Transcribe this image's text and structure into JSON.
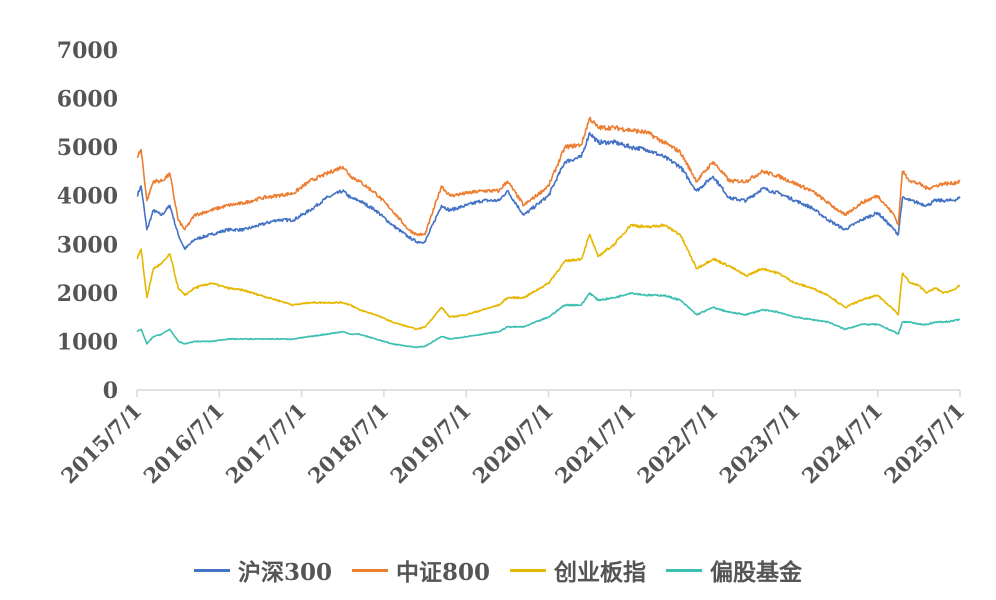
{
  "chart_data": {
    "type": "line",
    "title": "",
    "xlabel": "",
    "ylabel": "",
    "ylim": [
      0,
      7000
    ],
    "yticks": [
      0,
      1000,
      2000,
      3000,
      4000,
      5000,
      6000,
      7000
    ],
    "xlim": [
      2015.5,
      2025.5
    ],
    "xtick_labels": [
      "2015/7/1",
      "2016/7/1",
      "2017/7/1",
      "2018/7/1",
      "2019/7/1",
      "2020/7/1",
      "2021/7/1",
      "2022/7/1",
      "2023/7/1",
      "2024/7/1",
      "2025/7/1"
    ],
    "grid": false,
    "legend": "bottom",
    "series": [
      {
        "name": "沪深300",
        "color": "#4472C4",
        "x": [
          2015.5,
          2015.55,
          2015.62,
          2015.7,
          2015.8,
          2015.9,
          2016.0,
          2016.08,
          2016.2,
          2016.4,
          2016.6,
          2016.8,
          2017.0,
          2017.2,
          2017.4,
          2017.6,
          2017.8,
          2018.0,
          2018.1,
          2018.2,
          2018.4,
          2018.6,
          2018.8,
          2018.9,
          2019.0,
          2019.2,
          2019.3,
          2019.5,
          2019.7,
          2019.9,
          2020.0,
          2020.2,
          2020.5,
          2020.7,
          2020.9,
          2021.0,
          2021.1,
          2021.3,
          2021.5,
          2021.7,
          2021.9,
          2022.1,
          2022.3,
          2022.5,
          2022.7,
          2022.9,
          2023.1,
          2023.3,
          2023.5,
          2023.7,
          2023.9,
          2024.1,
          2024.3,
          2024.5,
          2024.7,
          2024.75,
          2024.8,
          2024.9,
          2025.0,
          2025.1,
          2025.2,
          2025.3,
          2025.4,
          2025.5
        ],
        "values": [
          4000,
          4200,
          3300,
          3700,
          3600,
          3800,
          3200,
          2900,
          3100,
          3200,
          3300,
          3300,
          3400,
          3500,
          3500,
          3700,
          3950,
          4100,
          3950,
          3900,
          3700,
          3400,
          3150,
          3050,
          3050,
          3800,
          3700,
          3800,
          3900,
          3900,
          4100,
          3600,
          4000,
          4700,
          4800,
          5300,
          5100,
          5100,
          5000,
          4950,
          4800,
          4600,
          4100,
          4400,
          3950,
          3900,
          4150,
          4050,
          3900,
          3750,
          3500,
          3300,
          3500,
          3650,
          3300,
          3200,
          3950,
          3900,
          3850,
          3800,
          3900,
          3900,
          3900,
          3950
        ]
      },
      {
        "name": "中证800",
        "color": "#ED7D31",
        "x": [
          2015.5,
          2015.55,
          2015.62,
          2015.7,
          2015.8,
          2015.9,
          2016.0,
          2016.08,
          2016.2,
          2016.4,
          2016.6,
          2016.8,
          2017.0,
          2017.2,
          2017.4,
          2017.6,
          2017.8,
          2018.0,
          2018.1,
          2018.2,
          2018.4,
          2018.6,
          2018.8,
          2018.9,
          2019.0,
          2019.2,
          2019.3,
          2019.5,
          2019.7,
          2019.9,
          2020.0,
          2020.2,
          2020.5,
          2020.7,
          2020.9,
          2021.0,
          2021.1,
          2021.3,
          2021.5,
          2021.7,
          2021.9,
          2022.1,
          2022.3,
          2022.5,
          2022.7,
          2022.9,
          2023.1,
          2023.3,
          2023.5,
          2023.7,
          2023.9,
          2024.1,
          2024.3,
          2024.5,
          2024.7,
          2024.75,
          2024.8,
          2024.9,
          2025.0,
          2025.1,
          2025.2,
          2025.3,
          2025.4,
          2025.5
        ],
        "values": [
          4800,
          4950,
          3900,
          4300,
          4300,
          4450,
          3500,
          3300,
          3600,
          3700,
          3800,
          3850,
          3950,
          4000,
          4050,
          4300,
          4450,
          4600,
          4400,
          4300,
          4050,
          3700,
          3300,
          3200,
          3200,
          4200,
          4000,
          4050,
          4100,
          4100,
          4300,
          3800,
          4200,
          5000,
          5050,
          5600,
          5400,
          5400,
          5350,
          5300,
          5100,
          4900,
          4300,
          4700,
          4300,
          4300,
          4500,
          4400,
          4250,
          4100,
          3850,
          3600,
          3850,
          4000,
          3600,
          3400,
          4500,
          4300,
          4250,
          4150,
          4200,
          4250,
          4250,
          4300
        ]
      },
      {
        "name": "创业板指",
        "color": "#E5B700",
        "x": [
          2015.5,
          2015.55,
          2015.62,
          2015.7,
          2015.8,
          2015.9,
          2016.0,
          2016.08,
          2016.2,
          2016.4,
          2016.6,
          2016.8,
          2017.0,
          2017.2,
          2017.4,
          2017.6,
          2017.8,
          2018.0,
          2018.1,
          2018.2,
          2018.4,
          2018.6,
          2018.8,
          2018.9,
          2019.0,
          2019.2,
          2019.3,
          2019.5,
          2019.7,
          2019.9,
          2020.0,
          2020.2,
          2020.5,
          2020.7,
          2020.9,
          2021.0,
          2021.1,
          2021.3,
          2021.5,
          2021.7,
          2021.9,
          2022.1,
          2022.3,
          2022.5,
          2022.7,
          2022.9,
          2023.1,
          2023.3,
          2023.5,
          2023.7,
          2023.9,
          2024.1,
          2024.3,
          2024.5,
          2024.7,
          2024.75,
          2024.8,
          2024.9,
          2025.0,
          2025.1,
          2025.2,
          2025.3,
          2025.4,
          2025.5
        ],
        "values": [
          2700,
          2900,
          1900,
          2500,
          2600,
          2800,
          2100,
          1950,
          2100,
          2200,
          2100,
          2050,
          1950,
          1850,
          1750,
          1800,
          1800,
          1800,
          1750,
          1650,
          1550,
          1400,
          1300,
          1250,
          1300,
          1700,
          1500,
          1550,
          1650,
          1750,
          1900,
          1900,
          2200,
          2650,
          2700,
          3200,
          2750,
          3000,
          3400,
          3350,
          3400,
          3200,
          2500,
          2700,
          2550,
          2350,
          2500,
          2400,
          2200,
          2100,
          1950,
          1700,
          1850,
          1950,
          1650,
          1550,
          2400,
          2200,
          2150,
          2000,
          2100,
          2000,
          2050,
          2150
        ]
      },
      {
        "name": "偏股基金",
        "color": "#3BBFB0",
        "x": [
          2015.5,
          2015.55,
          2015.62,
          2015.7,
          2015.8,
          2015.9,
          2016.0,
          2016.08,
          2016.2,
          2016.4,
          2016.6,
          2016.8,
          2017.0,
          2017.2,
          2017.4,
          2017.6,
          2017.8,
          2018.0,
          2018.1,
          2018.2,
          2018.4,
          2018.6,
          2018.8,
          2018.9,
          2019.0,
          2019.2,
          2019.3,
          2019.5,
          2019.7,
          2019.9,
          2020.0,
          2020.2,
          2020.5,
          2020.7,
          2020.9,
          2021.0,
          2021.1,
          2021.3,
          2021.5,
          2021.7,
          2021.9,
          2022.1,
          2022.3,
          2022.5,
          2022.7,
          2022.9,
          2023.1,
          2023.3,
          2023.5,
          2023.7,
          2023.9,
          2024.1,
          2024.3,
          2024.5,
          2024.7,
          2024.75,
          2024.8,
          2024.9,
          2025.0,
          2025.1,
          2025.2,
          2025.3,
          2025.4,
          2025.5
        ],
        "values": [
          1200,
          1250,
          950,
          1100,
          1150,
          1250,
          1000,
          950,
          1000,
          1000,
          1050,
          1050,
          1050,
          1050,
          1050,
          1100,
          1150,
          1200,
          1150,
          1150,
          1050,
          950,
          900,
          880,
          900,
          1100,
          1050,
          1100,
          1150,
          1200,
          1300,
          1300,
          1500,
          1750,
          1750,
          2000,
          1850,
          1900,
          2000,
          1950,
          1950,
          1850,
          1550,
          1700,
          1600,
          1550,
          1650,
          1600,
          1500,
          1450,
          1400,
          1250,
          1350,
          1350,
          1200,
          1150,
          1400,
          1400,
          1350,
          1350,
          1400,
          1400,
          1420,
          1450
        ]
      }
    ]
  }
}
